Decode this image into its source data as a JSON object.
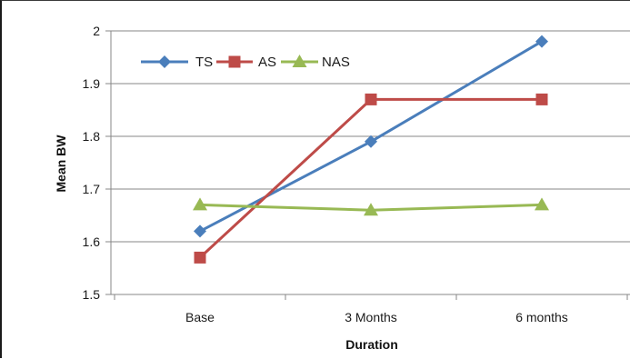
{
  "chart_data": {
    "type": "line",
    "categories": [
      "Base",
      "3 Months",
      "6 months"
    ],
    "series": [
      {
        "name": "TS",
        "values": [
          1.62,
          1.79,
          1.98
        ],
        "color": "#4a7ebb",
        "marker": "diamond"
      },
      {
        "name": "AS",
        "values": [
          1.57,
          1.87,
          1.87
        ],
        "color": "#be4b48",
        "marker": "square"
      },
      {
        "name": "NAS",
        "values": [
          1.67,
          1.66,
          1.67
        ],
        "color": "#98b954",
        "marker": "triangle"
      }
    ],
    "xlabel": "Duration",
    "ylabel": "Mean BW",
    "ylim": [
      1.5,
      2.0
    ],
    "yticks": [
      "1.5",
      "1.6",
      "1.7",
      "1.8",
      "1.9",
      "2"
    ],
    "grid": true,
    "legend_position": "top-left"
  }
}
